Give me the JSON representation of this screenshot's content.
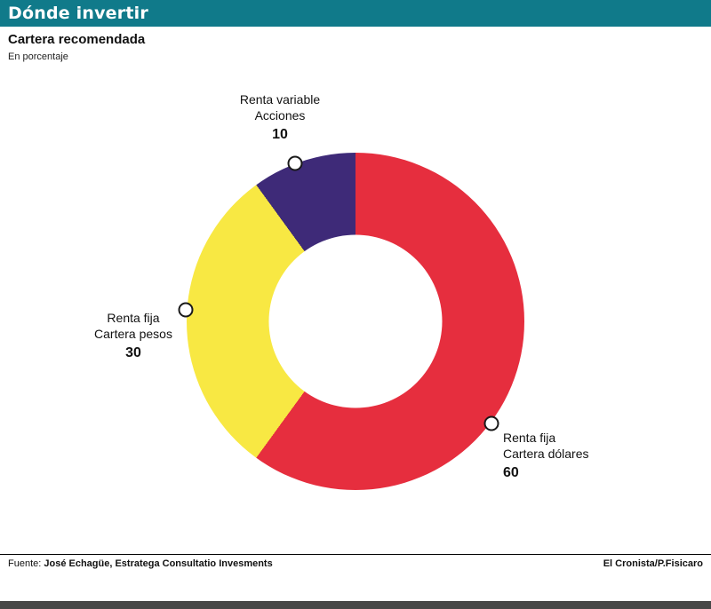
{
  "header": {
    "title": "Dónde invertir",
    "bg_color": "#107a8a"
  },
  "subheader": {
    "title": "Cartera recomendada",
    "subtitle": "En porcentaje"
  },
  "chart_data": {
    "type": "pie",
    "donut": true,
    "title": "Cartera recomendada",
    "subtitle": "En porcentaje",
    "units": "percent",
    "start_angle_deg": 0,
    "direction": "clockwise",
    "legend": "none",
    "slices": [
      {
        "label_line1": "Renta fija",
        "label_line2": "Cartera dólares",
        "value": 60,
        "color": "#e62e3e",
        "marker_angle_deg": 127
      },
      {
        "label_line1": "Renta fija",
        "label_line2": "Cartera pesos",
        "value": 30,
        "color": "#f8e843",
        "marker_angle_deg": 274
      },
      {
        "label_line1": "Renta variable",
        "label_line2": "Acciones",
        "value": 10,
        "color": "#3e2a78",
        "marker_angle_deg": 339
      }
    ]
  },
  "footer": {
    "source_prefix": "Fuente: ",
    "source": "José Echagüe, Estratega Consultatio Invesments",
    "credit": "El Cronista/P.Fisicaro"
  }
}
